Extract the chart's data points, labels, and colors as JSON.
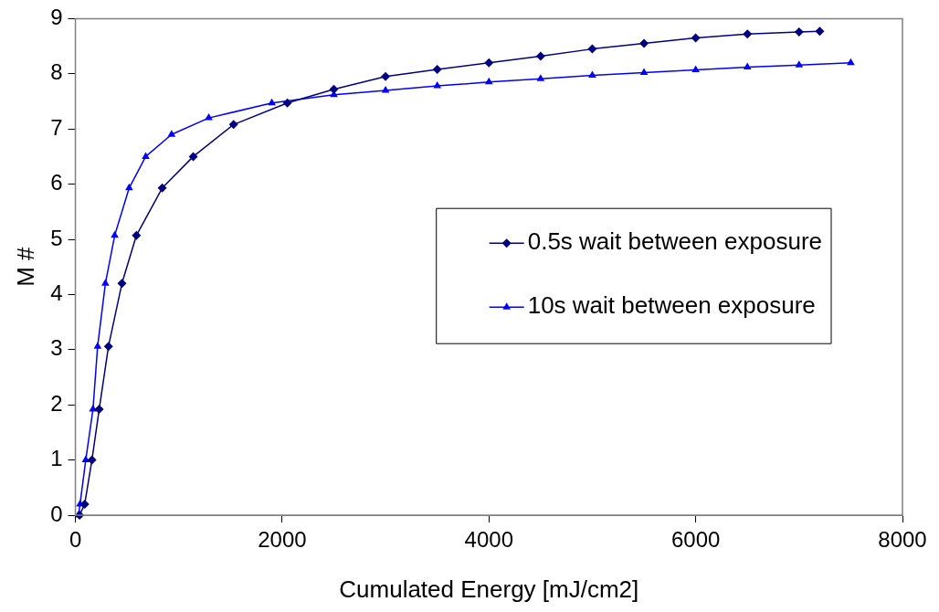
{
  "chart_data": {
    "type": "line",
    "xlabel": "Cumulated Energy [mJ/cm2]",
    "ylabel": "M #",
    "xlim": [
      0,
      8000
    ],
    "xticks": [
      0,
      2000,
      4000,
      6000,
      8000
    ],
    "ylim": [
      0,
      9
    ],
    "yticks": [
      0,
      1,
      2,
      3,
      4,
      5,
      6,
      7,
      8,
      9
    ],
    "grid": false,
    "legend": "right",
    "line_style": "solid",
    "series": [
      {
        "name": "0.5s wait between exposure",
        "color": "#000080",
        "marker": "diamond",
        "x": [
          40,
          90,
          160,
          230,
          320,
          450,
          590,
          840,
          1140,
          1530,
          2050,
          2500,
          3000,
          3500,
          4000,
          4500,
          5000,
          5500,
          6000,
          6500,
          7000,
          7200
        ],
        "values": [
          0,
          0.2,
          1.0,
          1.92,
          3.06,
          4.2,
          5.07,
          5.93,
          6.5,
          7.08,
          7.47,
          7.72,
          7.95,
          8.08,
          8.2,
          8.32,
          8.45,
          8.55,
          8.65,
          8.72,
          8.76,
          8.77
        ]
      },
      {
        "name": "10s wait between exposure",
        "color": "#0000ff",
        "marker": "triangle",
        "x": [
          30,
          45,
          100,
          170,
          215,
          290,
          380,
          520,
          680,
          930,
          1290,
          1900,
          2500,
          3000,
          3500,
          4000,
          4500,
          5000,
          5500,
          6000,
          6500,
          7000,
          7500
        ],
        "values": [
          0,
          0.2,
          1.0,
          1.92,
          3.06,
          4.2,
          5.07,
          5.93,
          6.5,
          6.9,
          7.2,
          7.47,
          7.62,
          7.7,
          7.78,
          7.85,
          7.91,
          7.97,
          8.02,
          8.07,
          8.12,
          8.16,
          8.2
        ]
      }
    ]
  }
}
